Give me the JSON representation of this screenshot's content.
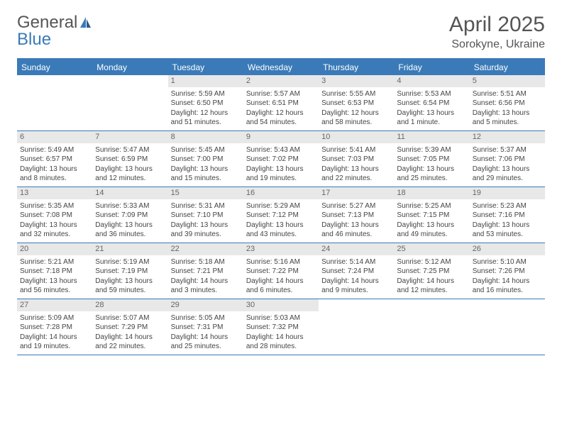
{
  "logo": {
    "general": "General",
    "blue": "Blue"
  },
  "title": "April 2025",
  "location": "Sorokyne, Ukraine",
  "weekdays": [
    "Sunday",
    "Monday",
    "Tuesday",
    "Wednesday",
    "Thursday",
    "Friday",
    "Saturday"
  ],
  "colors": {
    "accent": "#3a7ab8",
    "day_header_bg": "#e8e8e8",
    "text": "#444444",
    "title_text": "#555555"
  },
  "weeks": [
    [
      {
        "n": "",
        "empty": true
      },
      {
        "n": "",
        "empty": true
      },
      {
        "n": "1",
        "sr": "Sunrise: 5:59 AM",
        "ss": "Sunset: 6:50 PM",
        "dl1": "Daylight: 12 hours",
        "dl2": "and 51 minutes."
      },
      {
        "n": "2",
        "sr": "Sunrise: 5:57 AM",
        "ss": "Sunset: 6:51 PM",
        "dl1": "Daylight: 12 hours",
        "dl2": "and 54 minutes."
      },
      {
        "n": "3",
        "sr": "Sunrise: 5:55 AM",
        "ss": "Sunset: 6:53 PM",
        "dl1": "Daylight: 12 hours",
        "dl2": "and 58 minutes."
      },
      {
        "n": "4",
        "sr": "Sunrise: 5:53 AM",
        "ss": "Sunset: 6:54 PM",
        "dl1": "Daylight: 13 hours",
        "dl2": "and 1 minute."
      },
      {
        "n": "5",
        "sr": "Sunrise: 5:51 AM",
        "ss": "Sunset: 6:56 PM",
        "dl1": "Daylight: 13 hours",
        "dl2": "and 5 minutes."
      }
    ],
    [
      {
        "n": "6",
        "sr": "Sunrise: 5:49 AM",
        "ss": "Sunset: 6:57 PM",
        "dl1": "Daylight: 13 hours",
        "dl2": "and 8 minutes."
      },
      {
        "n": "7",
        "sr": "Sunrise: 5:47 AM",
        "ss": "Sunset: 6:59 PM",
        "dl1": "Daylight: 13 hours",
        "dl2": "and 12 minutes."
      },
      {
        "n": "8",
        "sr": "Sunrise: 5:45 AM",
        "ss": "Sunset: 7:00 PM",
        "dl1": "Daylight: 13 hours",
        "dl2": "and 15 minutes."
      },
      {
        "n": "9",
        "sr": "Sunrise: 5:43 AM",
        "ss": "Sunset: 7:02 PM",
        "dl1": "Daylight: 13 hours",
        "dl2": "and 19 minutes."
      },
      {
        "n": "10",
        "sr": "Sunrise: 5:41 AM",
        "ss": "Sunset: 7:03 PM",
        "dl1": "Daylight: 13 hours",
        "dl2": "and 22 minutes."
      },
      {
        "n": "11",
        "sr": "Sunrise: 5:39 AM",
        "ss": "Sunset: 7:05 PM",
        "dl1": "Daylight: 13 hours",
        "dl2": "and 25 minutes."
      },
      {
        "n": "12",
        "sr": "Sunrise: 5:37 AM",
        "ss": "Sunset: 7:06 PM",
        "dl1": "Daylight: 13 hours",
        "dl2": "and 29 minutes."
      }
    ],
    [
      {
        "n": "13",
        "sr": "Sunrise: 5:35 AM",
        "ss": "Sunset: 7:08 PM",
        "dl1": "Daylight: 13 hours",
        "dl2": "and 32 minutes."
      },
      {
        "n": "14",
        "sr": "Sunrise: 5:33 AM",
        "ss": "Sunset: 7:09 PM",
        "dl1": "Daylight: 13 hours",
        "dl2": "and 36 minutes."
      },
      {
        "n": "15",
        "sr": "Sunrise: 5:31 AM",
        "ss": "Sunset: 7:10 PM",
        "dl1": "Daylight: 13 hours",
        "dl2": "and 39 minutes."
      },
      {
        "n": "16",
        "sr": "Sunrise: 5:29 AM",
        "ss": "Sunset: 7:12 PM",
        "dl1": "Daylight: 13 hours",
        "dl2": "and 43 minutes."
      },
      {
        "n": "17",
        "sr": "Sunrise: 5:27 AM",
        "ss": "Sunset: 7:13 PM",
        "dl1": "Daylight: 13 hours",
        "dl2": "and 46 minutes."
      },
      {
        "n": "18",
        "sr": "Sunrise: 5:25 AM",
        "ss": "Sunset: 7:15 PM",
        "dl1": "Daylight: 13 hours",
        "dl2": "and 49 minutes."
      },
      {
        "n": "19",
        "sr": "Sunrise: 5:23 AM",
        "ss": "Sunset: 7:16 PM",
        "dl1": "Daylight: 13 hours",
        "dl2": "and 53 minutes."
      }
    ],
    [
      {
        "n": "20",
        "sr": "Sunrise: 5:21 AM",
        "ss": "Sunset: 7:18 PM",
        "dl1": "Daylight: 13 hours",
        "dl2": "and 56 minutes."
      },
      {
        "n": "21",
        "sr": "Sunrise: 5:19 AM",
        "ss": "Sunset: 7:19 PM",
        "dl1": "Daylight: 13 hours",
        "dl2": "and 59 minutes."
      },
      {
        "n": "22",
        "sr": "Sunrise: 5:18 AM",
        "ss": "Sunset: 7:21 PM",
        "dl1": "Daylight: 14 hours",
        "dl2": "and 3 minutes."
      },
      {
        "n": "23",
        "sr": "Sunrise: 5:16 AM",
        "ss": "Sunset: 7:22 PM",
        "dl1": "Daylight: 14 hours",
        "dl2": "and 6 minutes."
      },
      {
        "n": "24",
        "sr": "Sunrise: 5:14 AM",
        "ss": "Sunset: 7:24 PM",
        "dl1": "Daylight: 14 hours",
        "dl2": "and 9 minutes."
      },
      {
        "n": "25",
        "sr": "Sunrise: 5:12 AM",
        "ss": "Sunset: 7:25 PM",
        "dl1": "Daylight: 14 hours",
        "dl2": "and 12 minutes."
      },
      {
        "n": "26",
        "sr": "Sunrise: 5:10 AM",
        "ss": "Sunset: 7:26 PM",
        "dl1": "Daylight: 14 hours",
        "dl2": "and 16 minutes."
      }
    ],
    [
      {
        "n": "27",
        "sr": "Sunrise: 5:09 AM",
        "ss": "Sunset: 7:28 PM",
        "dl1": "Daylight: 14 hours",
        "dl2": "and 19 minutes."
      },
      {
        "n": "28",
        "sr": "Sunrise: 5:07 AM",
        "ss": "Sunset: 7:29 PM",
        "dl1": "Daylight: 14 hours",
        "dl2": "and 22 minutes."
      },
      {
        "n": "29",
        "sr": "Sunrise: 5:05 AM",
        "ss": "Sunset: 7:31 PM",
        "dl1": "Daylight: 14 hours",
        "dl2": "and 25 minutes."
      },
      {
        "n": "30",
        "sr": "Sunrise: 5:03 AM",
        "ss": "Sunset: 7:32 PM",
        "dl1": "Daylight: 14 hours",
        "dl2": "and 28 minutes."
      },
      {
        "n": "",
        "empty": true
      },
      {
        "n": "",
        "empty": true
      },
      {
        "n": "",
        "empty": true
      }
    ]
  ]
}
